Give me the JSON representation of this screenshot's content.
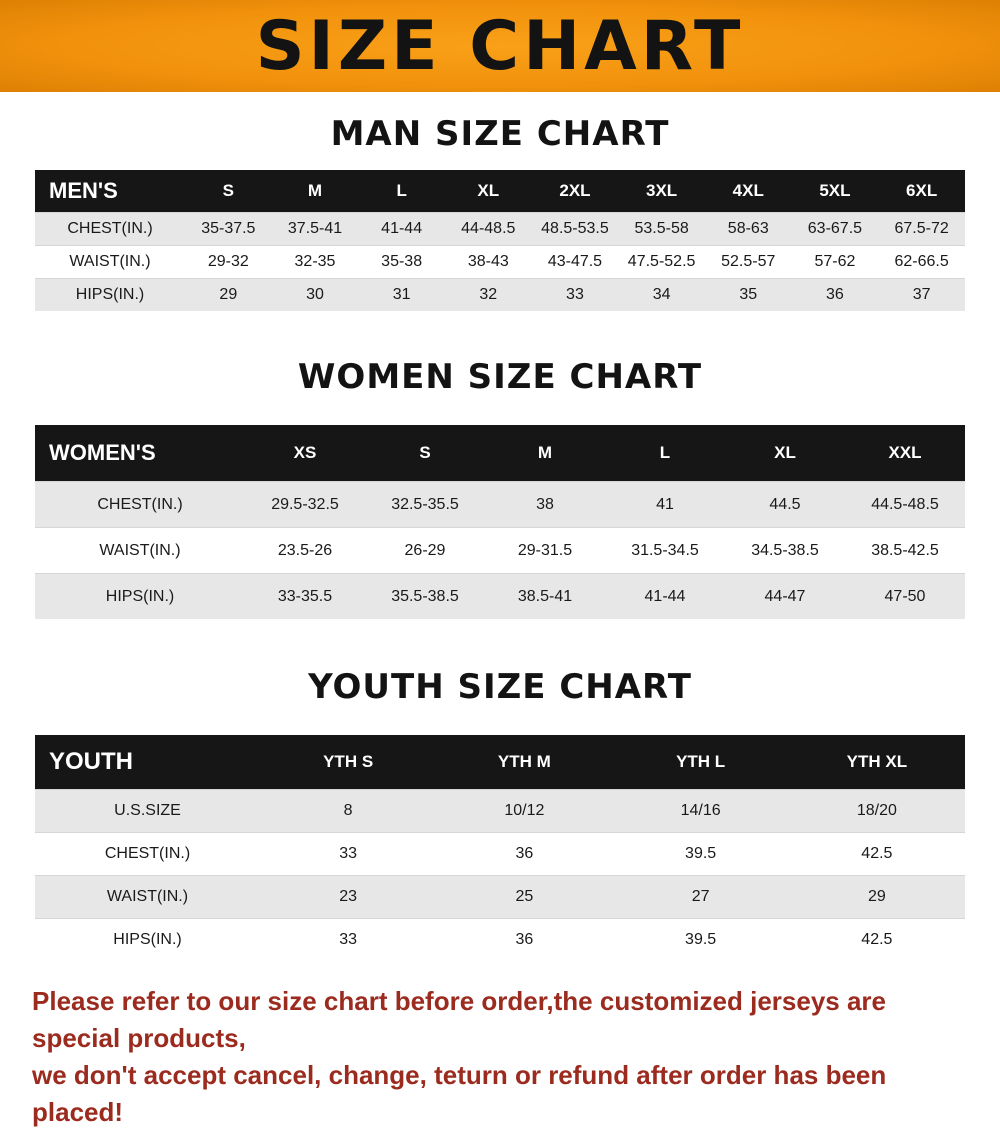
{
  "banner": {
    "title": "SIZE CHART",
    "bg_color": "#f2920c",
    "text_color": "#131313"
  },
  "men": {
    "heading": "MAN SIZE CHART",
    "header": [
      "MEN'S",
      "S",
      "M",
      "L",
      "XL",
      "2XL",
      "3XL",
      "4XL",
      "5XL",
      "6XL"
    ],
    "rows": [
      {
        "label": "CHEST(IN.)",
        "values": [
          "35-37.5",
          "37.5-41",
          "41-44",
          "44-48.5",
          "48.5-53.5",
          "53.5-58",
          "58-63",
          "63-67.5",
          "67.5-72"
        ]
      },
      {
        "label": "WAIST(IN.)",
        "values": [
          "29-32",
          "32-35",
          "35-38",
          "38-43",
          "43-47.5",
          "47.5-52.5",
          "52.5-57",
          "57-62",
          "62-66.5"
        ]
      },
      {
        "label": "HIPS(IN.)",
        "values": [
          "29",
          "30",
          "31",
          "32",
          "33",
          "34",
          "35",
          "36",
          "37"
        ]
      }
    ]
  },
  "women": {
    "heading": "WOMEN SIZE CHART",
    "header": [
      "WOMEN'S",
      "XS",
      "S",
      "M",
      "L",
      "XL",
      "XXL"
    ],
    "rows": [
      {
        "label": "CHEST(IN.)",
        "values": [
          "29.5-32.5",
          "32.5-35.5",
          "38",
          "41",
          "44.5",
          "44.5-48.5"
        ]
      },
      {
        "label": "WAIST(IN.)",
        "values": [
          "23.5-26",
          "26-29",
          "29-31.5",
          "31.5-34.5",
          "34.5-38.5",
          "38.5-42.5"
        ]
      },
      {
        "label": "HIPS(IN.)",
        "values": [
          "33-35.5",
          "35.5-38.5",
          "38.5-41",
          "41-44",
          "44-47",
          "47-50"
        ]
      }
    ]
  },
  "youth": {
    "heading": "YOUTH SIZE CHART",
    "header": [
      "YOUTH",
      "YTH S",
      "YTH M",
      "YTH L",
      "YTH XL"
    ],
    "rows": [
      {
        "label": "U.S.SIZE",
        "values": [
          "8",
          "10/12",
          "14/16",
          "18/20"
        ]
      },
      {
        "label": "CHEST(IN.)",
        "values": [
          "33",
          "36",
          "39.5",
          "42.5"
        ]
      },
      {
        "label": "WAIST(IN.)",
        "values": [
          "23",
          "25",
          "27",
          "29"
        ]
      },
      {
        "label": "HIPS(IN.)",
        "values": [
          "33",
          "36",
          "39.5",
          "42.5"
        ]
      }
    ]
  },
  "footer": {
    "line1": "Please refer to our size chart before order,the customized jerseys are special products,",
    "line2": "we don't accept cancel, change, teturn or refund after order has been placed!",
    "text_color": "#9c2b1f"
  }
}
